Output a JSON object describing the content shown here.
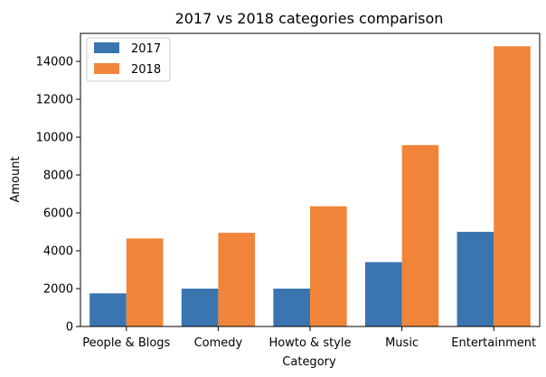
{
  "chart_data": {
    "type": "bar",
    "title": "2017 vs 2018 categories comparison",
    "xlabel": "Category",
    "ylabel": "Amount",
    "categories": [
      "People & Blogs",
      "Comedy",
      "Howto & style",
      "Music",
      "Entertainment"
    ],
    "series": [
      {
        "name": "2017",
        "color": "#3a75b0",
        "values": [
          1750,
          2000,
          2000,
          3400,
          5000
        ]
      },
      {
        "name": "2018",
        "color": "#f0853a",
        "values": [
          4650,
          4950,
          6350,
          9580,
          14800
        ]
      }
    ],
    "ylim": [
      0,
      15480
    ],
    "yticks": [
      0,
      2000,
      4000,
      6000,
      8000,
      10000,
      12000,
      14000
    ],
    "grid": false,
    "legend_position": "top-left"
  }
}
